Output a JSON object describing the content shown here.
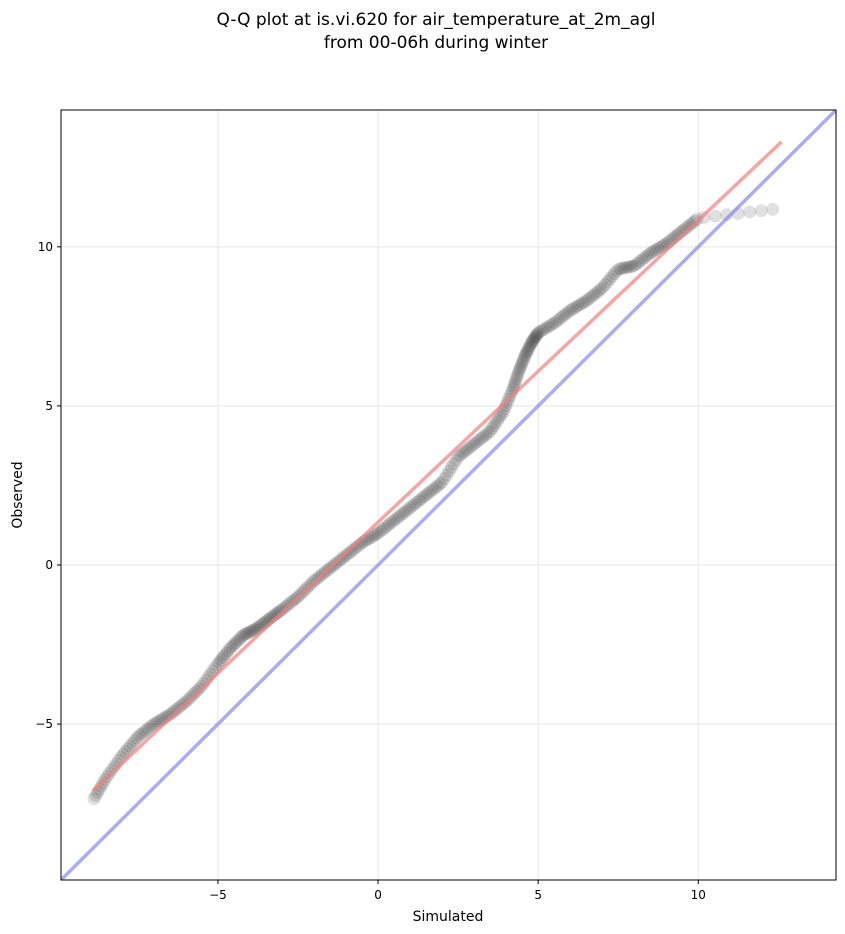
{
  "chart_data": {
    "type": "scatter",
    "title_lines": [
      "Q-Q plot at is.vi.620 for air_temperature_at_2m_agl",
      "from 00-06h during winter"
    ],
    "xlabel": "Simulated",
    "ylabel": "Observed",
    "xlim": [
      -9.9,
      14.3
    ],
    "ylim": [
      -9.9,
      14.3
    ],
    "x_ticks": [
      -5,
      0,
      5,
      10
    ],
    "y_ticks": [
      -5,
      0,
      5,
      10
    ],
    "x_tick_labels": [
      "−5",
      "0",
      "5",
      "10"
    ],
    "y_tick_labels": [
      "−5",
      "0",
      "5",
      "10"
    ],
    "grid": true,
    "legend": "none",
    "colors": {
      "points": "#000000",
      "fit_line": "#f08080",
      "identity_line": "#8080f0"
    },
    "identity_line": {
      "x": [
        -9.9,
        14.3
      ],
      "y": [
        -9.9,
        14.3
      ]
    },
    "fit_line": {
      "x": [
        -8.9,
        12.6
      ],
      "y": [
        -7.1,
        13.3
      ]
    },
    "quantile_control_points": {
      "x": [
        -8.9,
        -8.5,
        -8.0,
        -7.5,
        -7.0,
        -6.5,
        -6.0,
        -5.5,
        -5.0,
        -4.6,
        -4.2,
        -3.8,
        -3.4,
        -3.0,
        -2.5,
        -2.0,
        -1.5,
        -1.0,
        -0.5,
        0.0,
        0.5,
        1.0,
        1.5,
        2.0,
        2.5,
        3.0,
        3.5,
        3.9,
        4.2,
        4.4,
        4.6,
        4.8,
        5.0,
        5.5,
        6.0,
        6.5,
        7.0,
        7.5,
        8.0,
        8.5,
        9.0,
        9.5,
        10.0,
        12.5
      ],
      "y": [
        -7.4,
        -6.7,
        -6.0,
        -5.4,
        -5.0,
        -4.7,
        -4.3,
        -3.8,
        -3.1,
        -2.6,
        -2.2,
        -2.0,
        -1.7,
        -1.4,
        -1.0,
        -0.5,
        -0.1,
        0.3,
        0.7,
        1.0,
        1.4,
        1.8,
        2.2,
        2.6,
        3.4,
        3.8,
        4.2,
        4.8,
        5.5,
        6.1,
        6.6,
        7.0,
        7.3,
        7.6,
        8.0,
        8.3,
        8.7,
        9.3,
        9.4,
        9.8,
        10.1,
        10.5,
        10.9,
        11.2
      ]
    }
  }
}
